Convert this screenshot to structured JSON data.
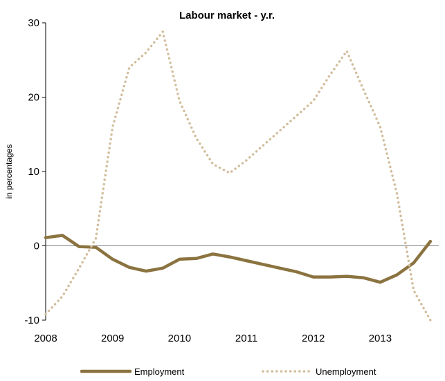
{
  "chart_data": {
    "type": "line",
    "title": "Labour market - y.r.",
    "xlabel": "",
    "ylabel": "in percentages",
    "ylim": [
      -10,
      30
    ],
    "yticks": [
      -10,
      0,
      10,
      20,
      30
    ],
    "xlim": [
      2008,
      2013.875
    ],
    "xticks": [
      "2008",
      "2009",
      "2010",
      "2011",
      "2012",
      "2013"
    ],
    "x": [
      2008.0,
      2008.25,
      2008.5,
      2008.75,
      2009.0,
      2009.25,
      2009.5,
      2009.75,
      2010.0,
      2010.25,
      2010.5,
      2010.75,
      2011.0,
      2011.25,
      2011.5,
      2011.75,
      2012.0,
      2012.25,
      2012.5,
      2012.75,
      2013.0,
      2013.25,
      2013.5,
      2013.75
    ],
    "series": [
      {
        "name": "Employment",
        "style": "solid",
        "color": "#8b7340",
        "values": [
          1.1,
          1.4,
          -0.1,
          -0.2,
          -1.8,
          -2.9,
          -3.4,
          -3.0,
          -1.8,
          -1.7,
          -1.1,
          -1.5,
          -2.0,
          -2.5,
          -3.0,
          -3.5,
          -4.2,
          -4.2,
          -4.1,
          -4.3,
          -4.9,
          -3.9,
          -2.3,
          0.6
        ]
      },
      {
        "name": "Unemployment",
        "style": "dotted",
        "color": "#d2bd9c",
        "values": [
          -9.2,
          -6.8,
          -3.0,
          1.0,
          16.0,
          24.0,
          26.0,
          28.8,
          19.5,
          14.5,
          11.0,
          9.8,
          11.5,
          13.5,
          15.5,
          17.5,
          19.5,
          23.0,
          26.2,
          21.0,
          16.0,
          7.0,
          -6.0,
          -10.0
        ]
      }
    ],
    "legend_position": "bottom",
    "grid": false
  }
}
